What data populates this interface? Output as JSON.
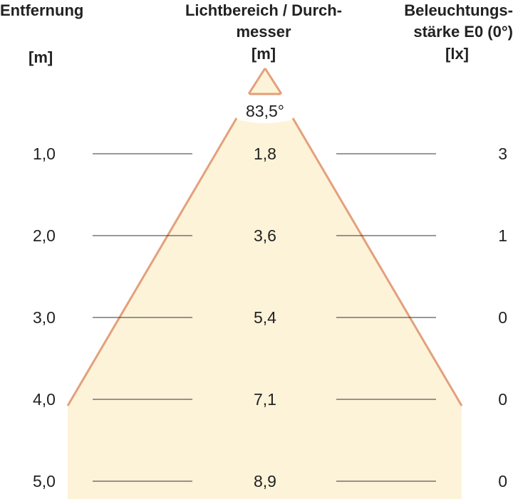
{
  "headers": {
    "distance": {
      "title": "Entfernung",
      "unit": "[m]"
    },
    "diameter": {
      "title_line1": "Lichtbereich / Durch-",
      "title_line2": "messer",
      "unit": "[m]"
    },
    "illuminance": {
      "title_line1": "Beleuchtungs-",
      "title_line2": "stärke E0 (0°)",
      "unit": "[lx]"
    }
  },
  "beam_angle": "83,5°",
  "rows": [
    {
      "distance": "1,0",
      "diameter": "1,8",
      "illuminance": "3"
    },
    {
      "distance": "2,0",
      "diameter": "3,6",
      "illuminance": "1"
    },
    {
      "distance": "3,0",
      "diameter": "5,4",
      "illuminance": "0"
    },
    {
      "distance": "4,0",
      "diameter": "7,1",
      "illuminance": "0"
    },
    {
      "distance": "5,0",
      "diameter": "8,9",
      "illuminance": "0"
    }
  ],
  "colors": {
    "beam_fill": "#fdf3d9",
    "beam_edge": "#e3a07c",
    "guide_line": "#333333",
    "text": "#222222"
  }
}
